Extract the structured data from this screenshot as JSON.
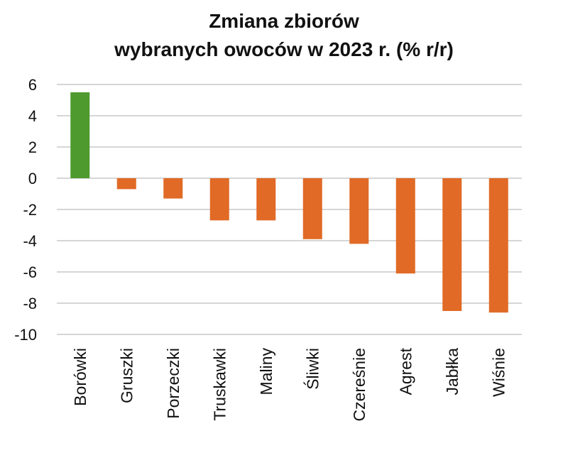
{
  "chart_data": {
    "type": "bar",
    "title_line1": "Zmiana zbiorów",
    "title_line2": "wybranych owoców w 2023 r. (% r/r)",
    "categories": [
      "Borówki",
      "Gruszki",
      "Porzeczki",
      "Truskawki",
      "Maliny",
      "Śliwki",
      "Czereśnie",
      "Agrest",
      "Jabłka",
      "Wiśnie"
    ],
    "values": [
      5.5,
      -0.7,
      -1.3,
      -2.7,
      -2.7,
      -3.9,
      -4.2,
      -6.1,
      -8.5,
      -8.6
    ],
    "ylim": [
      -10,
      6
    ],
    "yticks": [
      6,
      4,
      2,
      0,
      -2,
      -4,
      -6,
      -8,
      -10
    ],
    "grid": true,
    "colors": {
      "positive": "#4e9a2e",
      "negative": "#e06a26",
      "grid": "#c8c8c8"
    }
  }
}
